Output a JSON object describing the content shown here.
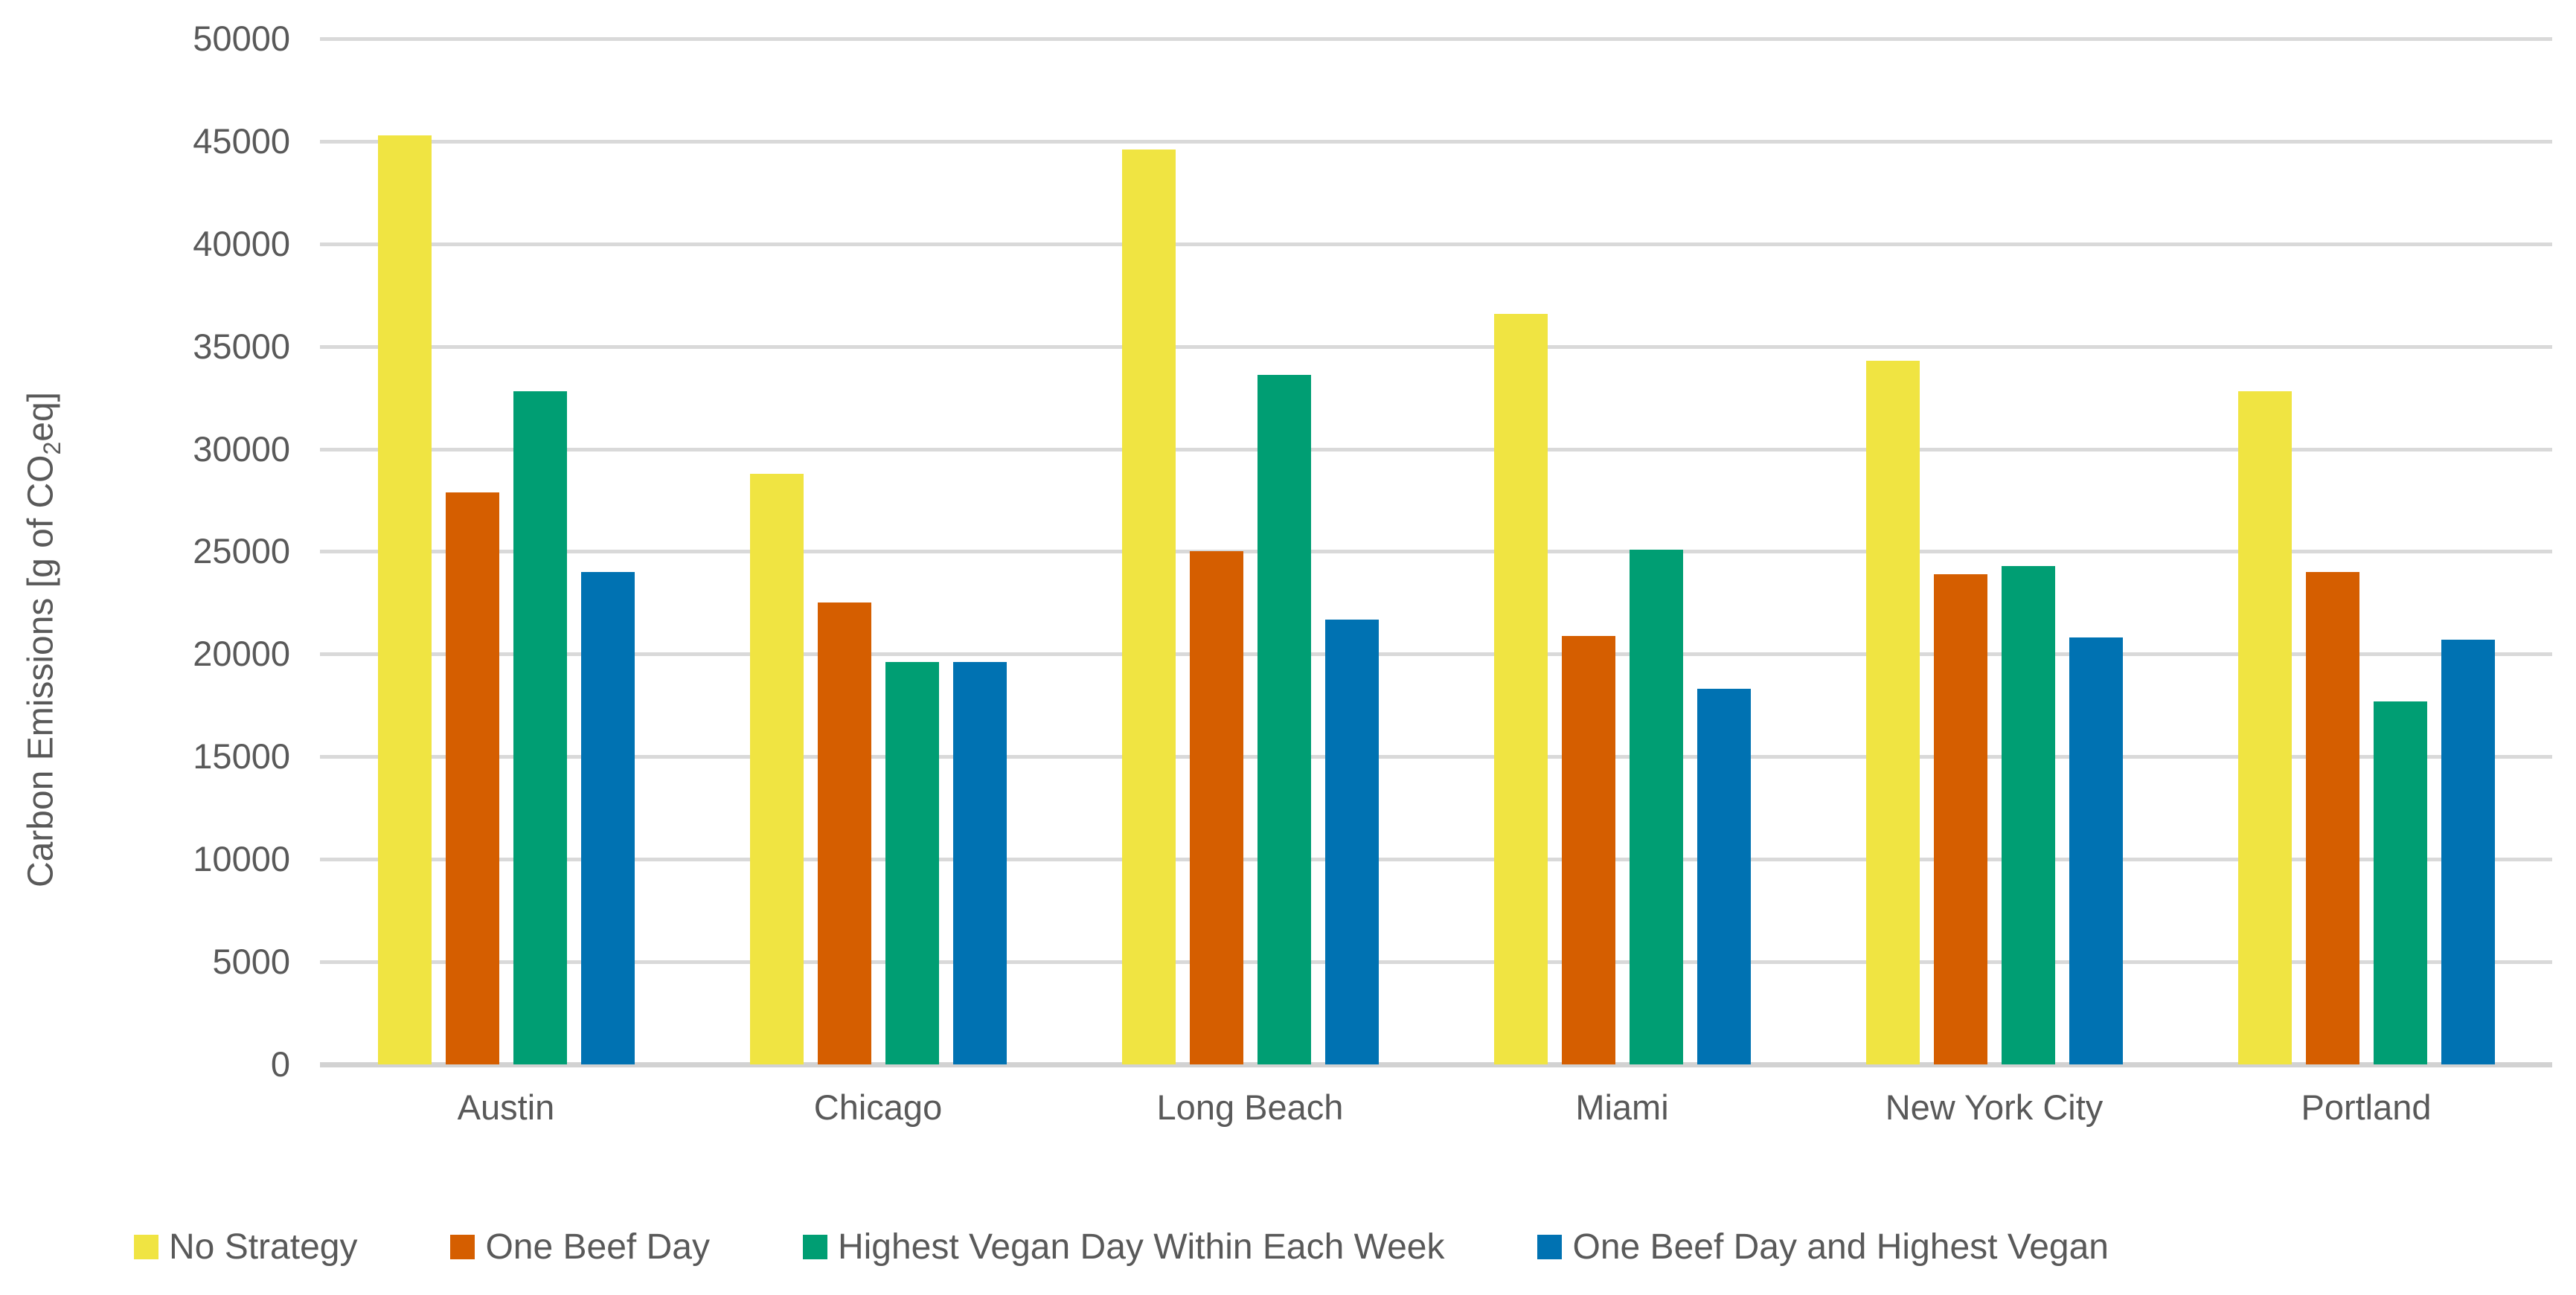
{
  "chart_data": {
    "type": "bar",
    "title": "",
    "ylabel_prefix": "Carbon Emissions [g of CO",
    "ylabel_sub": "2",
    "ylabel_suffix": "eq]",
    "xlabel": "",
    "categories": [
      "Austin",
      "Chicago",
      "Long Beach",
      "Miami",
      "New York City",
      "Portland"
    ],
    "series": [
      {
        "name": "No Strategy",
        "color": "#F0E442",
        "values": [
          45300,
          28800,
          44600,
          36600,
          34300,
          32800
        ]
      },
      {
        "name": "One Beef Day",
        "color": "#D55E00",
        "values": [
          27900,
          22500,
          25000,
          20900,
          23900,
          24000
        ]
      },
      {
        "name": "Highest Vegan Day Within Each Week",
        "color": "#009E73",
        "values": [
          32800,
          19600,
          33600,
          25100,
          24300,
          17700
        ]
      },
      {
        "name": "One Beef Day and Highest Vegan",
        "color": "#0072B2",
        "values": [
          24000,
          19600,
          21700,
          18300,
          20800,
          20700
        ]
      }
    ],
    "y_ticks": [
      0,
      5000,
      10000,
      15000,
      20000,
      25000,
      30000,
      35000,
      40000,
      45000,
      50000
    ],
    "ylim": [
      0,
      50000
    ],
    "grid": true,
    "gridline_color": "#D9D9D9",
    "text_color": "#595959",
    "legend_position": "bottom"
  }
}
